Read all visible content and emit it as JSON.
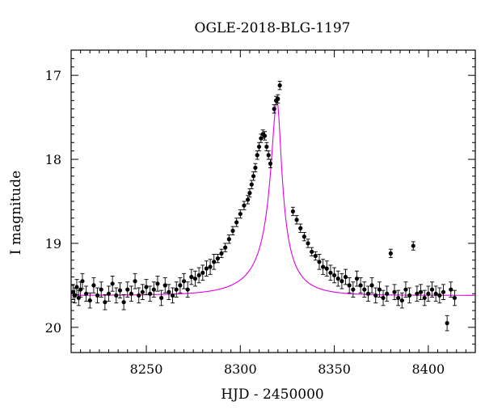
{
  "chart_data": {
    "type": "scatter",
    "title": "OGLE-2018-BLG-1197",
    "xlabel": "HJD - 2450000",
    "ylabel": "I magnitude",
    "xlim": [
      8210,
      8425
    ],
    "ylim": [
      20.3,
      16.7
    ],
    "y_inverted": true,
    "x_ticks": [
      8250,
      8300,
      8350,
      8400
    ],
    "y_ticks": [
      17,
      18,
      19,
      20
    ],
    "grid": false,
    "colors": {
      "points": "#000000",
      "model": "#e100e1"
    },
    "model": {
      "type": "point-lens-with-caustic-like-asymmetry",
      "baseline": 19.62,
      "peak_mag": 17.3,
      "peak_time": 8319.5
    },
    "series": [
      {
        "kind": "points",
        "x": [
          8211,
          8212,
          8213,
          8214,
          8215,
          8216,
          8218,
          8220,
          8222,
          8224,
          8226,
          8228,
          8230,
          8232,
          8234,
          8236,
          8238,
          8240,
          8242,
          8244,
          8246,
          8248,
          8250,
          8252,
          8254,
          8256,
          8258,
          8260,
          8262,
          8264,
          8266,
          8268,
          8270,
          8272,
          8274,
          8276,
          8278,
          8280,
          8282,
          8284,
          8286,
          8288,
          8290,
          8292,
          8294,
          8296,
          8298,
          8300,
          8302,
          8304,
          8305,
          8306,
          8307,
          8308,
          8309,
          8310,
          8311,
          8312,
          8313,
          8314,
          8315,
          8316,
          8318,
          8319,
          8320,
          8321,
          8328,
          8330,
          8332,
          8334,
          8336,
          8338,
          8340,
          8342,
          8344,
          8346,
          8348,
          8350,
          8352,
          8354,
          8356,
          8358,
          8360,
          8362,
          8364,
          8366,
          8368,
          8370,
          8372,
          8374,
          8376,
          8378,
          8380,
          8382,
          8384,
          8386,
          8388,
          8390,
          8392,
          8394,
          8396,
          8398,
          8400,
          8402,
          8404,
          8406,
          8408,
          8410,
          8412,
          8414
        ],
        "y": [
          19.58,
          19.62,
          19.52,
          19.65,
          19.55,
          19.45,
          19.6,
          19.68,
          19.5,
          19.62,
          19.55,
          19.7,
          19.6,
          19.48,
          19.62,
          19.56,
          19.7,
          19.55,
          19.6,
          19.45,
          19.62,
          19.58,
          19.52,
          19.6,
          19.55,
          19.48,
          19.65,
          19.5,
          19.58,
          19.62,
          19.55,
          19.5,
          19.45,
          19.55,
          19.4,
          19.42,
          19.38,
          19.35,
          19.3,
          19.28,
          19.22,
          19.18,
          19.12,
          19.05,
          18.95,
          18.85,
          18.75,
          18.65,
          18.55,
          18.48,
          18.4,
          18.3,
          18.2,
          18.1,
          17.95,
          17.85,
          17.75,
          17.7,
          17.72,
          17.85,
          17.95,
          18.05,
          17.4,
          17.3,
          17.28,
          17.12,
          18.62,
          18.72,
          18.82,
          18.92,
          19.0,
          19.1,
          19.15,
          19.22,
          19.28,
          19.3,
          19.35,
          19.38,
          19.42,
          19.45,
          19.4,
          19.5,
          19.55,
          19.42,
          19.5,
          19.55,
          19.6,
          19.5,
          19.62,
          19.55,
          19.65,
          19.6,
          19.12,
          19.58,
          19.65,
          19.68,
          19.55,
          19.62,
          19.03,
          19.6,
          19.58,
          19.65,
          19.6,
          19.55,
          19.6,
          19.62,
          19.58,
          19.95,
          19.55,
          19.65
        ]
      }
    ]
  }
}
